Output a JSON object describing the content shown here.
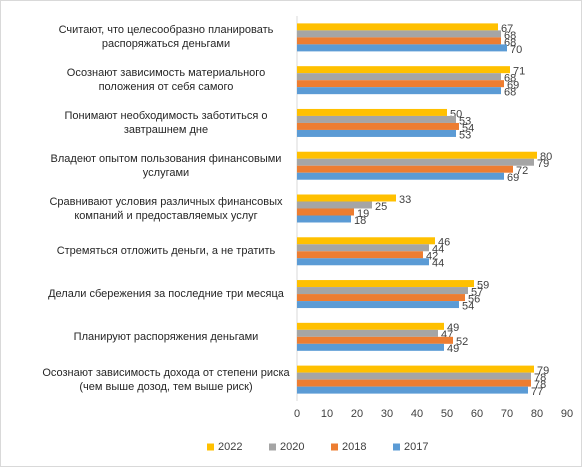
{
  "chart_data": {
    "type": "hbar",
    "categories": [
      "Считают, что целесообразно планировать распоряжаться деньгами",
      "Осознают зависимость материального положения от себя самого",
      "Понимают необходимость заботиться о завтрашнем дне",
      "Владеют опытом пользования финансовыми услугами",
      "Сравнивают условия различных финансовых компаний и предоставляемых услуг",
      "Стремяться отложить деньги, а не тратить",
      "Делали сбережения за последние три месяца",
      "Планируют распоряжения деньгами",
      "Осознают зависимость дохода от степени риска (чем выше дозод, тем выше риск)"
    ],
    "series": [
      {
        "name": "2022",
        "color": "#FFC000",
        "values": [
          67,
          71,
          50,
          80,
          33,
          46,
          59,
          49,
          79
        ]
      },
      {
        "name": "2020",
        "color": "#A5A5A5",
        "values": [
          68,
          68,
          53,
          79,
          25,
          44,
          57,
          47,
          78
        ]
      },
      {
        "name": "2018",
        "color": "#ED7D31",
        "values": [
          68,
          69,
          54,
          72,
          19,
          42,
          56,
          52,
          78
        ]
      },
      {
        "name": "2017",
        "color": "#5B9BD5",
        "values": [
          70,
          68,
          53,
          69,
          18,
          44,
          54,
          49,
          77
        ]
      }
    ],
    "xlim": [
      0,
      90
    ],
    "xticks": [
      0,
      10,
      20,
      30,
      40,
      50,
      60,
      70,
      80,
      90
    ],
    "grid": false,
    "legend": "bottom"
  }
}
